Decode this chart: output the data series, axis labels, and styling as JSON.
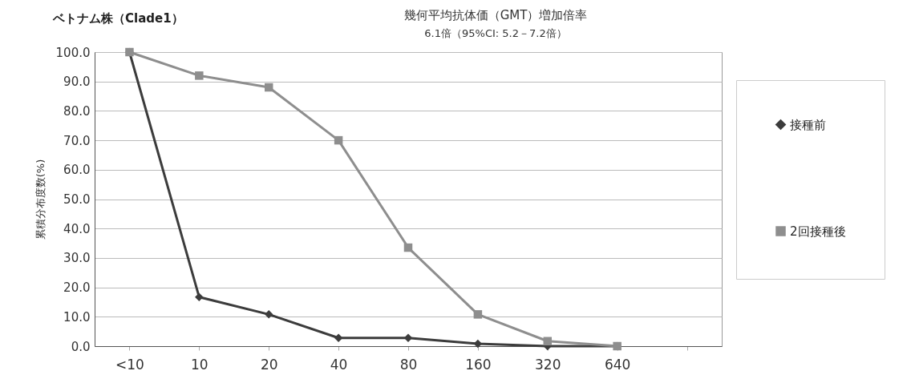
{
  "chart_data": {
    "type": "line",
    "title": "ベトナム株（Clade1）",
    "annotations": [
      "幾何平均抗体価（GMT）増加倍率",
      "6.1倍（95%CI: 5.2－7.2倍）"
    ],
    "ylabel": "累積分布度数(%)",
    "categories": [
      "<10",
      "10",
      "20",
      "40",
      "80",
      "160",
      "320",
      "640",
      null
    ],
    "series": [
      {
        "name": "接種前",
        "color": "#3c3c3c",
        "marker": "diamond",
        "values": [
          100,
          16.7,
          10.8,
          2.8,
          2.8,
          0.8,
          0,
          0,
          null
        ]
      },
      {
        "name": "2回接種後",
        "color": "#8e8e8e",
        "marker": "square",
        "values": [
          100,
          92,
          88,
          70,
          33.5,
          10.8,
          1.7,
          0,
          null
        ]
      }
    ],
    "ylim": [
      0,
      100
    ],
    "yticks": [
      {
        "value": 0,
        "label": "0.0"
      },
      {
        "value": 10,
        "label": "10.0"
      },
      {
        "value": 20,
        "label": "20.0"
      },
      {
        "value": 30,
        "label": "30.0"
      },
      {
        "value": 40,
        "label": "40.0"
      },
      {
        "value": 50,
        "label": "50.0"
      },
      {
        "value": 60,
        "label": "60.0"
      },
      {
        "value": 70,
        "label": "70.0"
      },
      {
        "value": 80,
        "label": "80.0"
      },
      {
        "value": 90,
        "label": "90.0"
      },
      {
        "value": 100,
        "label": "100.0"
      }
    ],
    "grid": "y",
    "legend": "right",
    "line_style": "solid"
  }
}
